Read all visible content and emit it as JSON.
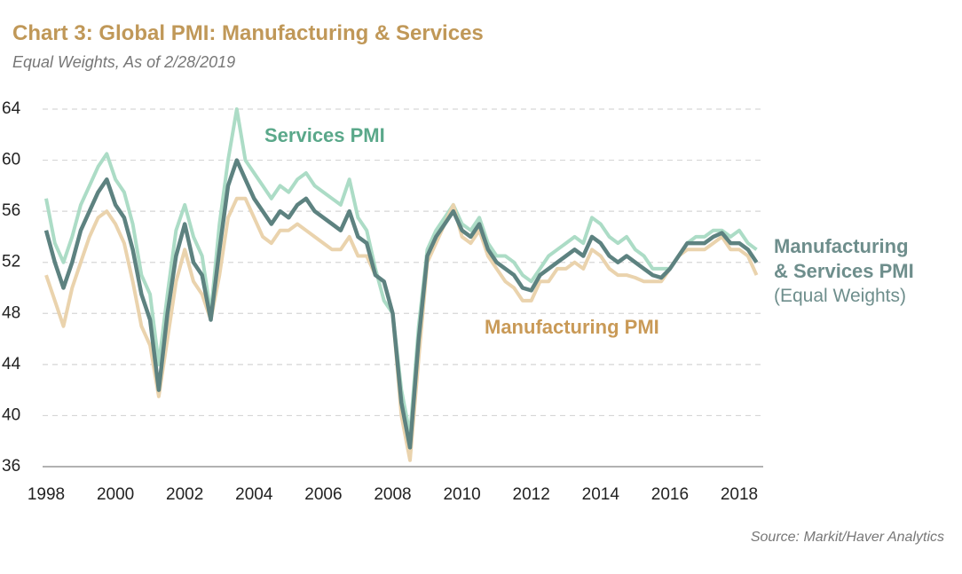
{
  "chart_data": {
    "type": "line",
    "title": "Chart 3: Global PMI: Manufacturing & Services",
    "subtitle": "Equal Weights, As of 2/28/2019",
    "source": "Source: Markit/Haver Analytics",
    "annotation": "(Equal Weights)",
    "x": [
      1998,
      1998.25,
      1998.5,
      1998.75,
      1999,
      1999.25,
      1999.5,
      1999.75,
      2000,
      2000.25,
      2000.5,
      2000.75,
      2001,
      2001.25,
      2001.5,
      2001.75,
      2002,
      2002.25,
      2002.5,
      2002.75,
      2003,
      2003.25,
      2003.5,
      2003.75,
      2004,
      2004.25,
      2004.5,
      2004.75,
      2005,
      2005.25,
      2005.5,
      2005.75,
      2006,
      2006.25,
      2006.5,
      2006.75,
      2007,
      2007.25,
      2007.5,
      2007.75,
      2008,
      2008.25,
      2008.5,
      2008.75,
      2009,
      2009.25,
      2009.5,
      2009.75,
      2010,
      2010.25,
      2010.5,
      2010.75,
      2011,
      2011.25,
      2011.5,
      2011.75,
      2012,
      2012.25,
      2012.5,
      2012.75,
      2013,
      2013.25,
      2013.5,
      2013.75,
      2014,
      2014.25,
      2014.5,
      2014.75,
      2015,
      2015.25,
      2015.5,
      2015.75,
      2016,
      2016.25,
      2016.5,
      2016.75,
      2017,
      2017.25,
      2017.5,
      2017.75,
      2018,
      2018.25,
      2018.5
    ],
    "series": [
      {
        "name": "Services PMI",
        "color": "#acdcc6",
        "label_color": "#5aa88a",
        "values": [
          57,
          53.5,
          52,
          54,
          56.5,
          58,
          59.5,
          60.5,
          58.5,
          57.5,
          55,
          51,
          49.5,
          44,
          49.5,
          54.5,
          56.5,
          54,
          52.5,
          48,
          55,
          60,
          64,
          60,
          59,
          58,
          57,
          58,
          57.5,
          58.5,
          59,
          58,
          57.5,
          57,
          56.5,
          58.5,
          55.5,
          54.5,
          51.5,
          49,
          48,
          42,
          38.5,
          47,
          53,
          54.5,
          55.5,
          56.5,
          55,
          54.5,
          55.5,
          53.5,
          52.5,
          52.5,
          52,
          51,
          50.5,
          51.5,
          52.5,
          53,
          53.5,
          54,
          53.5,
          55.5,
          55,
          54,
          53.5,
          54,
          53,
          52.5,
          51.5,
          51.5,
          51.5,
          52.5,
          53.5,
          54,
          54,
          54.5,
          54.5,
          54,
          54.5,
          53.5,
          53
        ]
      },
      {
        "name": "Manufacturing PMI",
        "color": "#ead3ad",
        "label_color": "#c99a57",
        "values": [
          51,
          49,
          47,
          50,
          52,
          54,
          55.5,
          56,
          55,
          53.5,
          50.5,
          47,
          45.5,
          41.5,
          46,
          50.5,
          53,
          50.5,
          49.5,
          47.5,
          51,
          55.5,
          57,
          57,
          55.5,
          54,
          53.5,
          54.5,
          54.5,
          55,
          54.5,
          54,
          53.5,
          53,
          53,
          54,
          52.5,
          52.5,
          51,
          50.5,
          48,
          40,
          36.5,
          44.5,
          52,
          53.5,
          55,
          56.5,
          54,
          53.5,
          54.5,
          52.5,
          51.5,
          50.5,
          50,
          49,
          49,
          50.5,
          50.5,
          51.5,
          51.5,
          52,
          51.5,
          53,
          52.5,
          51.5,
          51,
          51,
          50.8,
          50.5,
          50.5,
          50.5,
          51.5,
          52.5,
          53,
          53,
          53,
          53.5,
          54,
          53,
          53,
          52.5,
          51
        ]
      },
      {
        "name": "Manufacturing & Services PMI",
        "color": "#5d8280",
        "label_color": "#6e8e8c",
        "values": [
          54.5,
          52,
          50,
          52,
          54.5,
          56,
          57.5,
          58.5,
          56.5,
          55.5,
          53,
          49.5,
          47.5,
          42,
          48,
          52.5,
          55,
          52,
          51,
          47.5,
          53,
          58,
          60,
          58.5,
          57,
          56,
          55,
          56,
          55.5,
          56.5,
          57,
          56,
          55.5,
          55,
          54.5,
          56,
          54,
          53.5,
          51,
          50.5,
          48,
          41,
          37.5,
          46,
          52.5,
          54,
          55,
          56,
          54.5,
          54,
          55,
          53,
          52,
          51.5,
          51,
          50,
          49.8,
          51,
          51.5,
          52,
          52.5,
          53,
          52.5,
          54,
          53.5,
          52.5,
          52,
          52.5,
          52,
          51.5,
          51,
          50.8,
          51.5,
          52.5,
          53.5,
          53.5,
          53.5,
          54,
          54.3,
          53.5,
          53.5,
          53,
          52
        ]
      }
    ],
    "xlim": [
      1998,
      2018.7
    ],
    "xticks": [
      1998,
      2000,
      2002,
      2004,
      2006,
      2008,
      2010,
      2012,
      2014,
      2016,
      2018
    ],
    "ylim": [
      36,
      64
    ],
    "yticks": [
      36,
      40,
      44,
      48,
      52,
      56,
      60,
      64
    ],
    "grid": true
  }
}
